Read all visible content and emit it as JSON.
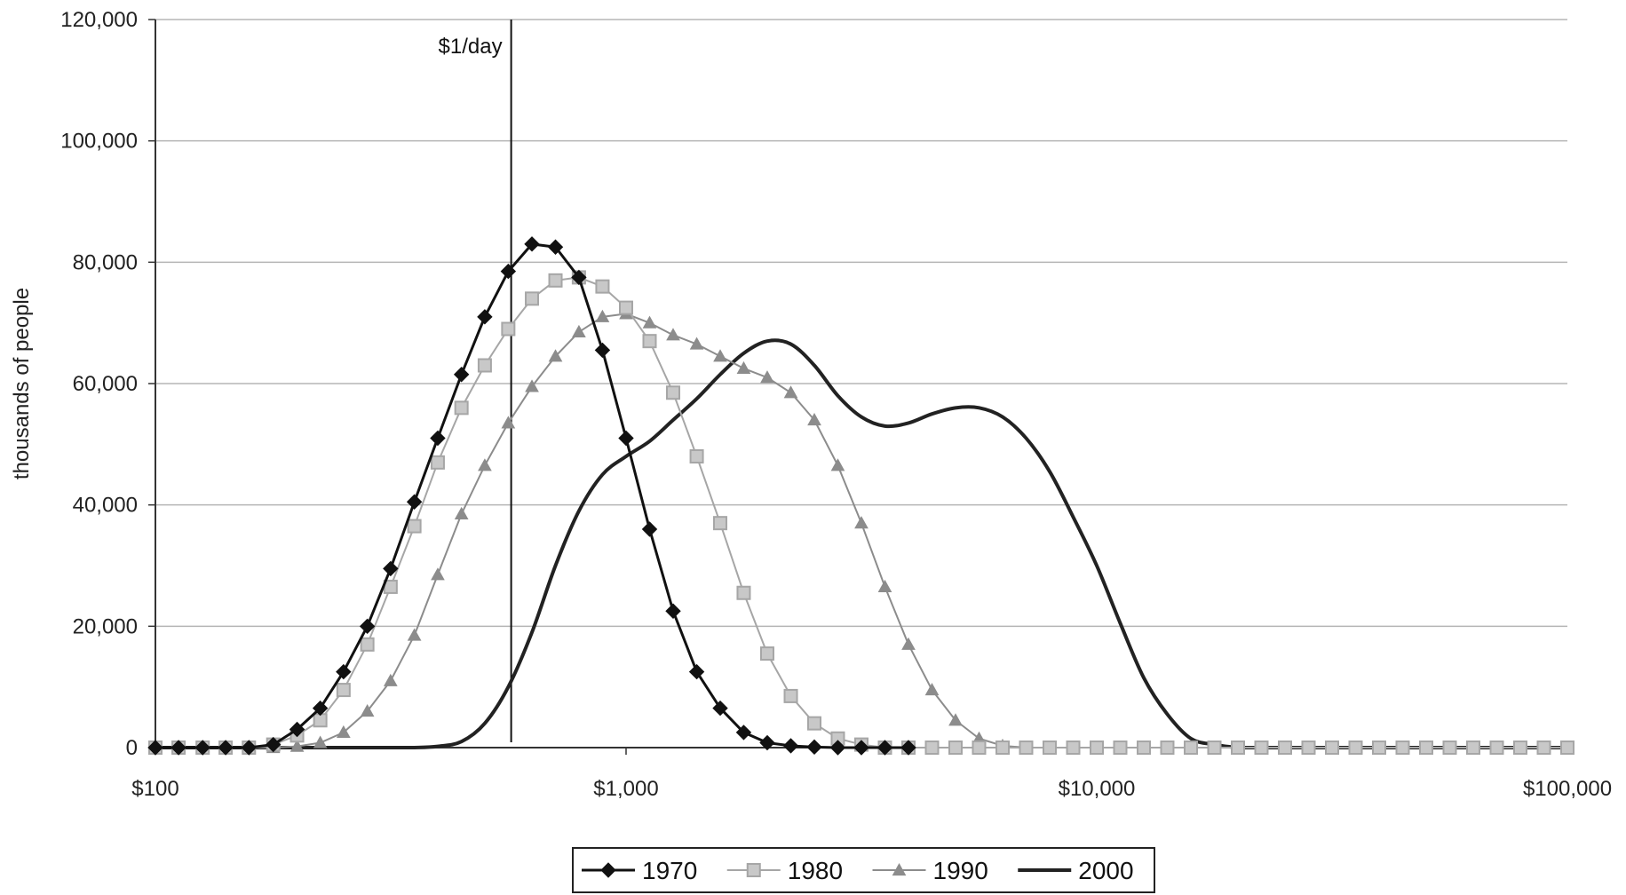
{
  "chart_data": {
    "type": "line",
    "title": "",
    "xlabel": "",
    "ylabel": "thousands of people",
    "x_scale": "log",
    "xlim": [
      100,
      100000
    ],
    "ylim": [
      0,
      120000
    ],
    "x_ticks": [
      100,
      1000,
      10000,
      100000
    ],
    "x_tick_labels": [
      "$100",
      "$1,000",
      "$10,000",
      "$100,000"
    ],
    "y_ticks": [
      0,
      20000,
      40000,
      60000,
      80000,
      100000,
      120000
    ],
    "y_tick_labels": [
      "0",
      "20,000",
      "40,000",
      "60,000",
      "80,000",
      "100,000",
      "120,000"
    ],
    "grid": "horizontal",
    "legend_position": "bottom",
    "annotations": [
      {
        "type": "vertical-line",
        "x": 570,
        "label": "$1/day"
      }
    ],
    "series": [
      {
        "name": "1970",
        "color": "#111111",
        "marker": "diamond",
        "smooth": false,
        "x": [
          100,
          112,
          126,
          141,
          158,
          178,
          200,
          224,
          251,
          282,
          316,
          355,
          398,
          447,
          501,
          562,
          631,
          708,
          794,
          891,
          1000,
          1122,
          1259,
          1413,
          1585,
          1778,
          1995,
          2239,
          2512,
          2818,
          3162,
          3548,
          3981
        ],
        "y": [
          0,
          0,
          0,
          0,
          0,
          500,
          3000,
          6500,
          12500,
          20000,
          29500,
          40500,
          51000,
          61500,
          71000,
          78500,
          83000,
          82500,
          77500,
          65500,
          51000,
          36000,
          22500,
          12500,
          6500,
          2500,
          800,
          300,
          100,
          0,
          0,
          0,
          0
        ]
      },
      {
        "name": "1980",
        "color": "#a6a6a6",
        "marker": "square",
        "smooth": false,
        "x": [
          100,
          112,
          126,
          141,
          158,
          178,
          200,
          224,
          251,
          282,
          316,
          355,
          398,
          447,
          501,
          562,
          631,
          708,
          794,
          891,
          1000,
          1122,
          1259,
          1413,
          1585,
          1778,
          1995,
          2239,
          2512,
          2818,
          3162,
          3548,
          3981,
          4467,
          5012,
          5623,
          6310,
          7079,
          7943,
          8913,
          10000,
          11220,
          12589,
          14125,
          15849,
          17783,
          19953,
          22387,
          25119,
          28184,
          31623,
          35481,
          39811,
          44668,
          50119,
          56234,
          63096,
          70795,
          79433,
          89125,
          100000
        ],
        "y": [
          0,
          0,
          0,
          0,
          0,
          500,
          2000,
          4500,
          9500,
          17000,
          26500,
          36500,
          47000,
          56000,
          63000,
          69000,
          74000,
          77000,
          77500,
          76000,
          72500,
          67000,
          58500,
          48000,
          37000,
          25500,
          15500,
          8500,
          4000,
          1500,
          500,
          0,
          0,
          0,
          0,
          0,
          0,
          0,
          0,
          0,
          0,
          0,
          0,
          0,
          0,
          0,
          0,
          0,
          0,
          0,
          0,
          0,
          0,
          0,
          0,
          0,
          0,
          0,
          0,
          0,
          0
        ]
      },
      {
        "name": "1990",
        "color": "#8c8c8c",
        "marker": "triangle",
        "smooth": false,
        "x": [
          100,
          112,
          126,
          141,
          158,
          178,
          200,
          224,
          251,
          282,
          316,
          355,
          398,
          447,
          501,
          562,
          631,
          708,
          794,
          891,
          1000,
          1122,
          1259,
          1413,
          1585,
          1778,
          1995,
          2239,
          2512,
          2818,
          3162,
          3548,
          3981,
          4467,
          5012,
          5623,
          6310,
          7079,
          7943,
          8913,
          10000
        ],
        "y": [
          0,
          0,
          0,
          0,
          0,
          0,
          200,
          800,
          2500,
          6000,
          11000,
          18500,
          28500,
          38500,
          46500,
          53500,
          59500,
          64500,
          68500,
          71000,
          71500,
          70000,
          68000,
          66500,
          64500,
          62500,
          61000,
          58500,
          54000,
          46500,
          37000,
          26500,
          17000,
          9500,
          4500,
          1500,
          300,
          0,
          0,
          0,
          0
        ]
      },
      {
        "name": "2000",
        "color": "#222222",
        "marker": "none",
        "smooth": true,
        "x": [
          100,
          126,
          158,
          200,
          251,
          316,
          355,
          398,
          447,
          501,
          562,
          631,
          708,
          794,
          891,
          1000,
          1122,
          1259,
          1413,
          1585,
          1778,
          1995,
          2239,
          2512,
          2818,
          3162,
          3548,
          3981,
          4467,
          5012,
          5623,
          6310,
          7079,
          7943,
          8913,
          10000,
          11220,
          12589,
          14125,
          15849,
          17783,
          19953,
          22387,
          25119,
          28184,
          31623,
          35481,
          39811,
          44668,
          50119,
          56234,
          63096,
          70795,
          79433,
          89125,
          100000
        ],
        "y": [
          0,
          0,
          0,
          0,
          0,
          0,
          0,
          200,
          1000,
          4000,
          10000,
          19000,
          30000,
          39000,
          45000,
          48000,
          50500,
          54000,
          57500,
          61500,
          65000,
          67000,
          66500,
          63000,
          58000,
          54500,
          53000,
          53500,
          55000,
          56000,
          56000,
          54500,
          51000,
          45500,
          38000,
          30000,
          20500,
          11500,
          5500,
          1500,
          500,
          0,
          0,
          0,
          0,
          0,
          0,
          0,
          0,
          0,
          0,
          0,
          0,
          0,
          0,
          0
        ]
      }
    ]
  }
}
